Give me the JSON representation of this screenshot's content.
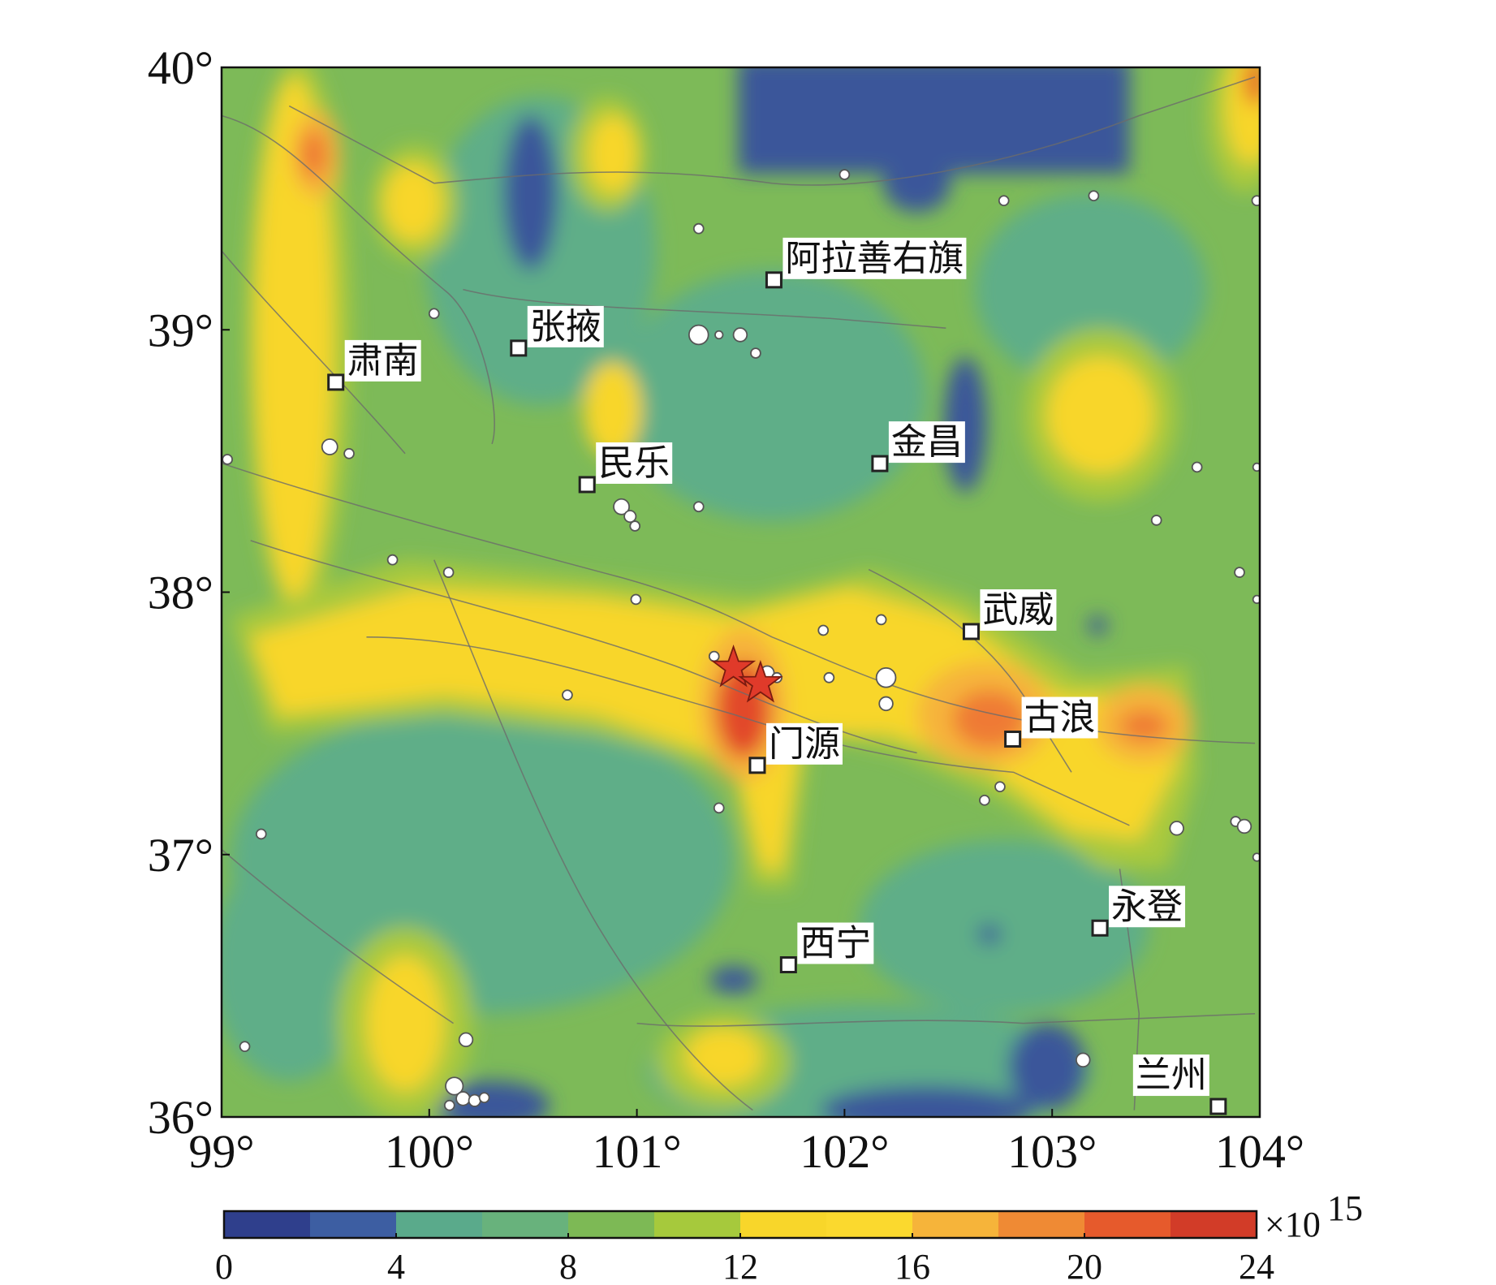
{
  "map": {
    "xlim": [
      99,
      104
    ],
    "ylim": [
      36,
      40
    ],
    "xticks": [
      {
        "value": 99,
        "label": "99°"
      },
      {
        "value": 100,
        "label": "100°"
      },
      {
        "value": 101,
        "label": "101°"
      },
      {
        "value": 102,
        "label": "102°"
      },
      {
        "value": 103,
        "label": "103°"
      },
      {
        "value": 104,
        "label": "104°"
      }
    ],
    "yticks": [
      {
        "value": 36,
        "label": "36°"
      },
      {
        "value": 37,
        "label": "37°"
      },
      {
        "value": 38,
        "label": "38°"
      },
      {
        "value": 39,
        "label": "39°"
      },
      {
        "value": 40,
        "label": "40°"
      }
    ],
    "cities": [
      {
        "name": "阿拉善右旗",
        "lon": 101.66,
        "lat": 39.19
      },
      {
        "name": "张掖",
        "lon": 100.43,
        "lat": 38.93
      },
      {
        "name": "肃南",
        "lon": 99.55,
        "lat": 38.8
      },
      {
        "name": "民乐",
        "lon": 100.76,
        "lat": 38.41
      },
      {
        "name": "金昌",
        "lon": 102.17,
        "lat": 38.49
      },
      {
        "name": "武威",
        "lon": 102.61,
        "lat": 37.85
      },
      {
        "name": "古浪",
        "lon": 102.81,
        "lat": 37.44
      },
      {
        "name": "门源",
        "lon": 101.58,
        "lat": 37.34
      },
      {
        "name": "永登",
        "lon": 103.23,
        "lat": 36.72
      },
      {
        "name": "西宁",
        "lon": 101.73,
        "lat": 36.58
      },
      {
        "name": "兰州",
        "lon": 103.8,
        "lat": 36.04
      }
    ]
  },
  "colorbar": {
    "lim": [
      0,
      24
    ],
    "ticks": [
      0,
      4,
      8,
      12,
      16,
      20,
      24
    ],
    "unit": "×10",
    "unit_exp": "15",
    "colors": [
      "#2f3f8c",
      "#3d5ea2",
      "#5aaa8b",
      "#68b27c",
      "#7db955",
      "#a6c93c",
      "#f8d62a",
      "#fbd92e",
      "#f6b43a",
      "#ef8a34",
      "#e65a2c",
      "#d23c28"
    ]
  }
}
